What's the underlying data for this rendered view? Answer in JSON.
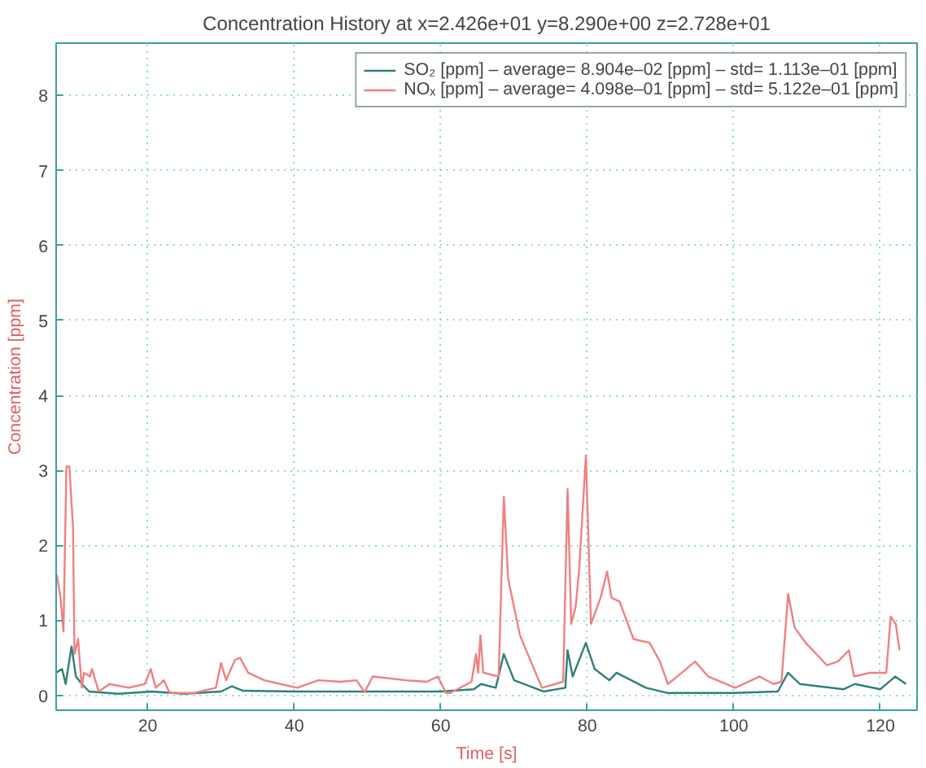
{
  "chart_data": {
    "type": "line",
    "title": "Concentration History at x=2.426e+01 y=8.290e+00 z=2.728e+01",
    "xlabel": "Time [s]",
    "ylabel": "Concentration [ppm]",
    "xlim": [
      7.5,
      125
    ],
    "ylim": [
      -0.2,
      8.7
    ],
    "xticks": [
      20,
      40,
      60,
      80,
      100,
      120
    ],
    "yticks": [
      0,
      1,
      2,
      3,
      4,
      5,
      6,
      7,
      8
    ],
    "grid": true,
    "legend": "top right",
    "line_style": "solid",
    "series": [
      {
        "name": "SO₂ [ppm] – average= 8.904e–02 [ppm] – std= 1.113e–01 [ppm]",
        "color": "#2f7f7a",
        "x": [
          7.5,
          8.3,
          8.8,
          9.6,
          10.2,
          11,
          12,
          16,
          20.5,
          25,
          30,
          31.5,
          33,
          40,
          50,
          60,
          64.5,
          65.5,
          67.5,
          68.6,
          70,
          74,
          77,
          77.3,
          78,
          79.8,
          81,
          83,
          84,
          88,
          91,
          100,
          106,
          107.4,
          109,
          115,
          116.5,
          120,
          122,
          123.5
        ],
        "values": [
          0.3,
          0.35,
          0.15,
          0.65,
          0.25,
          0.15,
          0.05,
          0.02,
          0.05,
          0.02,
          0.05,
          0.12,
          0.06,
          0.05,
          0.05,
          0.05,
          0.08,
          0.15,
          0.1,
          0.55,
          0.2,
          0.05,
          0.1,
          0.6,
          0.25,
          0.7,
          0.35,
          0.2,
          0.3,
          0.1,
          0.03,
          0.03,
          0.05,
          0.3,
          0.15,
          0.08,
          0.15,
          0.08,
          0.25,
          0.15
        ]
      },
      {
        "name": "NOₓ [ppm] – average= 4.098e–01 [ppm] – std= 5.122e–01 [ppm]",
        "color": "#f08080",
        "x": [
          7.5,
          7.6,
          8.1,
          8.5,
          8.9,
          9.3,
          9.8,
          10.0,
          10.5,
          11.0,
          11.3,
          12.1,
          12.4,
          13.3,
          14.8,
          17.4,
          19.6,
          20.4,
          21.1,
          22.2,
          23.0,
          26.3,
          29.3,
          30,
          30.7,
          31.9,
          32.6,
          33.7,
          35.9,
          38.1,
          40.4,
          43.3,
          46.3,
          48.5,
          49.6,
          50.7,
          55.2,
          58.1,
          59.6,
          60.7,
          61.3,
          64.2,
          64.8,
          65.1,
          65.4,
          65.8,
          67.9,
          68.6,
          69.2,
          70.8,
          73.8,
          76.7,
          77.3,
          77.8,
          78.4,
          78.9,
          79.8,
          80.5,
          81.8,
          82.7,
          83.3,
          84.4,
          86.3,
          88.5,
          89.9,
          91.0,
          92.9,
          94.7,
          96.5,
          100.2,
          103.5,
          105.4,
          106.5,
          107.4,
          108.3,
          109.8,
          112.7,
          114.2,
          115.7,
          116.4,
          118.6,
          120.8,
          121.4,
          122.1,
          122.6
        ],
        "values": [
          1.55,
          1.6,
          1.3,
          0.85,
          3.05,
          3.05,
          2.25,
          0.55,
          0.75,
          0.1,
          0.3,
          0.25,
          0.35,
          0.05,
          0.15,
          0.1,
          0.15,
          0.35,
          0.1,
          0.2,
          0.03,
          0.03,
          0.1,
          0.43,
          0.2,
          0.47,
          0.5,
          0.3,
          0.2,
          0.15,
          0.1,
          0.2,
          0.18,
          0.2,
          0.04,
          0.25,
          0.2,
          0.18,
          0.25,
          0.03,
          0.03,
          0.18,
          0.55,
          0.3,
          0.8,
          0.3,
          0.25,
          2.65,
          1.55,
          0.8,
          0.1,
          0.18,
          2.75,
          0.95,
          1.18,
          1.7,
          3.2,
          0.95,
          1.3,
          1.65,
          1.3,
          1.25,
          0.75,
          0.7,
          0.45,
          0.15,
          0.3,
          0.45,
          0.25,
          0.1,
          0.25,
          0.15,
          0.18,
          1.35,
          0.9,
          0.7,
          0.4,
          0.45,
          0.6,
          0.25,
          0.3,
          0.3,
          1.05,
          0.95,
          0.6
        ]
      }
    ]
  }
}
